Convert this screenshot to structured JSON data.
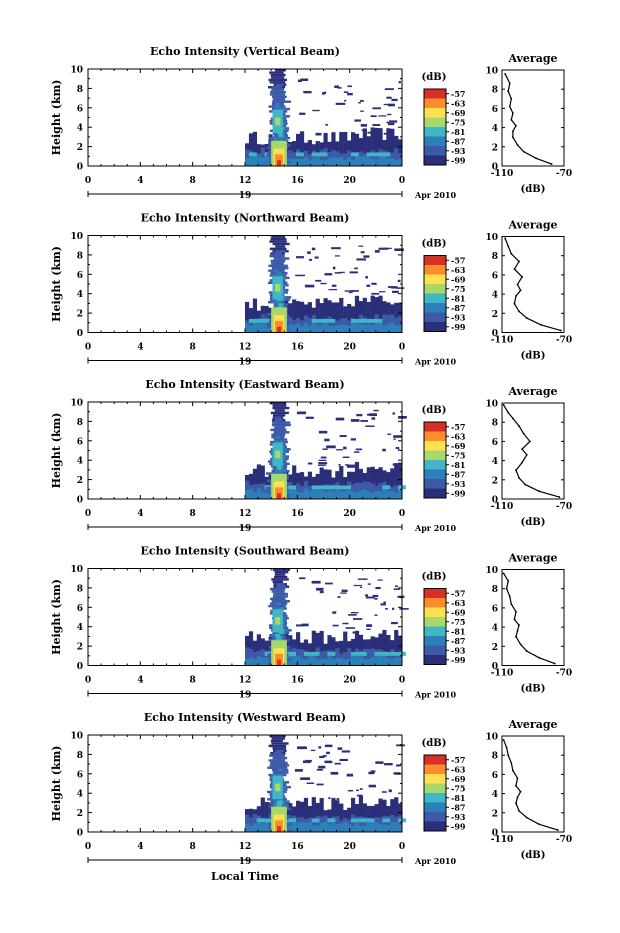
{
  "figure": {
    "xlabel_bottom": "Local Time"
  },
  "chart_data": [
    {
      "type": "heatmap",
      "title": "Echo Intensity (Vertical Beam)",
      "ylabel": "Height (km)",
      "yticks": [
        "0",
        "2",
        "4",
        "6",
        "8",
        "10"
      ],
      "xticks": [
        "0",
        "4",
        "8",
        "12",
        "16",
        "20",
        "0"
      ],
      "date_day": "19",
      "date_month": "Apr 2010",
      "colorbar_unit": "(dB)",
      "colorbar_ticks": [
        "-57",
        "-63",
        "-69",
        "-75",
        "-81",
        "-87",
        "-93",
        "-99"
      ],
      "colorbar_colors": [
        "#d73027",
        "#fc8d2c",
        "#fee050",
        "#a6d96a",
        "#41b6c4",
        "#2c7fb8",
        "#3d5aa8",
        "#2b2f7a"
      ],
      "average_profile": {
        "title": "Average",
        "xlabel": "(dB)",
        "xticks": [
          "-110",
          "-70"
        ],
        "yticks": [
          "0",
          "2",
          "4",
          "6",
          "8",
          "10"
        ],
        "x": [
          -78,
          -88,
          -96,
          -100,
          -103,
          -103,
          -101,
          -104,
          -103,
          -105,
          -104,
          -106,
          -105,
          -108
        ],
        "y": [
          0.2,
          0.8,
          1.5,
          2.2,
          3.0,
          3.6,
          4.2,
          4.8,
          5.5,
          6.2,
          7.0,
          7.8,
          8.6,
          9.6
        ]
      }
    },
    {
      "type": "heatmap",
      "title": "Echo Intensity (Northward Beam)",
      "ylabel": "Height (km)",
      "yticks": [
        "0",
        "2",
        "4",
        "6",
        "8",
        "10"
      ],
      "xticks": [
        "0",
        "4",
        "8",
        "12",
        "16",
        "20",
        "0"
      ],
      "date_day": "19",
      "date_month": "Apr 2010",
      "colorbar_unit": "(dB)",
      "colorbar_ticks": [
        "-57",
        "-63",
        "-69",
        "-75",
        "-81",
        "-87",
        "-93",
        "-99"
      ],
      "colorbar_colors": [
        "#d73027",
        "#fc8d2c",
        "#fee050",
        "#a6d96a",
        "#41b6c4",
        "#2c7fb8",
        "#3d5aa8",
        "#2b2f7a"
      ],
      "average_profile": {
        "title": "Average",
        "xlabel": "(dB)",
        "xticks": [
          "-110",
          "-70"
        ],
        "yticks": [
          "0",
          "2",
          "4",
          "6",
          "8",
          "10"
        ],
        "x": [
          -72,
          -85,
          -94,
          -99,
          -102,
          -101,
          -98,
          -100,
          -97,
          -102,
          -99,
          -104,
          -106,
          -108
        ],
        "y": [
          0.2,
          0.8,
          1.5,
          2.2,
          3.0,
          3.8,
          4.4,
          5.0,
          5.8,
          6.6,
          7.4,
          8.2,
          9.0,
          9.8
        ]
      }
    },
    {
      "type": "heatmap",
      "title": "Echo Intensity (Eastward Beam)",
      "ylabel": "Height (km)",
      "yticks": [
        "0",
        "2",
        "4",
        "6",
        "8",
        "10"
      ],
      "xticks": [
        "0",
        "4",
        "8",
        "12",
        "16",
        "20",
        "0"
      ],
      "date_day": "19",
      "date_month": "Apr 2010",
      "colorbar_unit": "(dB)",
      "colorbar_ticks": [
        "-57",
        "-63",
        "-69",
        "-75",
        "-81",
        "-87",
        "-93",
        "-99"
      ],
      "colorbar_colors": [
        "#d73027",
        "#fc8d2c",
        "#fee050",
        "#a6d96a",
        "#41b6c4",
        "#2c7fb8",
        "#3d5aa8",
        "#2b2f7a"
      ],
      "average_profile": {
        "title": "Average",
        "xlabel": "(dB)",
        "xticks": [
          "-110",
          "-70"
        ],
        "yticks": [
          "0",
          "2",
          "4",
          "6",
          "8",
          "10"
        ],
        "x": [
          -73,
          -86,
          -95,
          -99,
          -101,
          -97,
          -94,
          -97,
          -92,
          -96,
          -99,
          -103,
          -106,
          -109
        ],
        "y": [
          0.2,
          0.8,
          1.5,
          2.2,
          3.0,
          3.8,
          4.6,
          5.2,
          6.0,
          6.8,
          7.6,
          8.4,
          9.0,
          9.8
        ]
      }
    },
    {
      "type": "heatmap",
      "title": "Echo Intensity (Southward Beam)",
      "ylabel": "Height (km)",
      "yticks": [
        "0",
        "2",
        "4",
        "6",
        "8",
        "10"
      ],
      "xticks": [
        "0",
        "4",
        "8",
        "12",
        "16",
        "20",
        "0"
      ],
      "date_day": "19",
      "date_month": "Apr 2010",
      "colorbar_unit": "(dB)",
      "colorbar_ticks": [
        "-57",
        "-63",
        "-69",
        "-75",
        "-81",
        "-87",
        "-93",
        "-99"
      ],
      "colorbar_colors": [
        "#d73027",
        "#fc8d2c",
        "#fee050",
        "#a6d96a",
        "#41b6c4",
        "#2c7fb8",
        "#3d5aa8",
        "#2b2f7a"
      ],
      "average_profile": {
        "title": "Average",
        "xlabel": "(dB)",
        "xticks": [
          "-110",
          "-70"
        ],
        "yticks": [
          "0",
          "2",
          "4",
          "6",
          "8",
          "10"
        ],
        "x": [
          -76,
          -86,
          -94,
          -98,
          -101,
          -100,
          -99,
          -102,
          -101,
          -104,
          -105,
          -107,
          -106,
          -109
        ],
        "y": [
          0.2,
          0.8,
          1.5,
          2.2,
          3.0,
          3.6,
          4.2,
          4.8,
          5.6,
          6.4,
          7.2,
          8.0,
          8.8,
          9.6
        ]
      }
    },
    {
      "type": "heatmap",
      "title": "Echo Intensity (Westward Beam)",
      "ylabel": "Height (km)",
      "yticks": [
        "0",
        "2",
        "4",
        "6",
        "8",
        "10"
      ],
      "xticks": [
        "0",
        "4",
        "8",
        "12",
        "16",
        "20",
        "0"
      ],
      "date_day": "19",
      "date_month": "Apr 2010",
      "colorbar_unit": "(dB)",
      "colorbar_ticks": [
        "-57",
        "-63",
        "-69",
        "-75",
        "-81",
        "-87",
        "-93",
        "-99"
      ],
      "colorbar_colors": [
        "#d73027",
        "#fc8d2c",
        "#fee050",
        "#a6d96a",
        "#41b6c4",
        "#2c7fb8",
        "#3d5aa8",
        "#2b2f7a"
      ],
      "average_profile": {
        "title": "Average",
        "xlabel": "(dB)",
        "xticks": [
          "-110",
          "-70"
        ],
        "yticks": [
          "0",
          "2",
          "4",
          "6",
          "8",
          "10"
        ],
        "x": [
          -74,
          -86,
          -94,
          -99,
          -101,
          -100,
          -98,
          -101,
          -100,
          -103,
          -104,
          -106,
          -107,
          -109
        ],
        "y": [
          0.2,
          0.8,
          1.5,
          2.2,
          3.0,
          3.6,
          4.2,
          4.8,
          5.6,
          6.4,
          7.2,
          8.0,
          8.8,
          9.6
        ]
      }
    }
  ]
}
